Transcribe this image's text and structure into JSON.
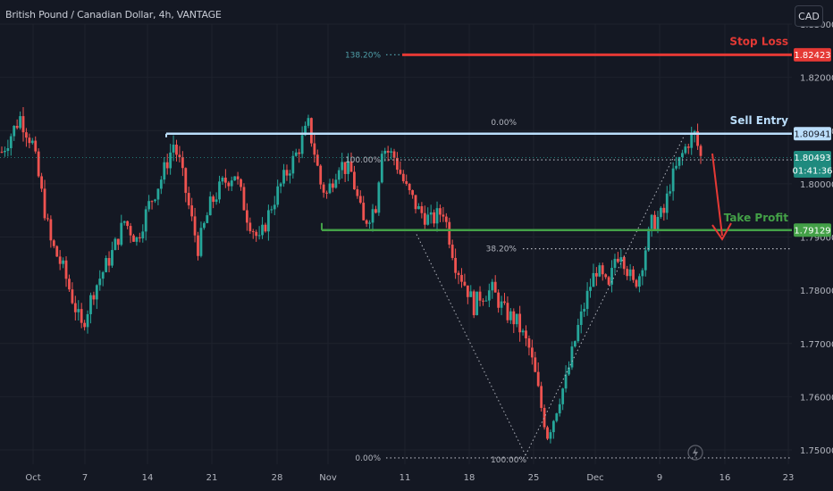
{
  "header": {
    "title": "British Pound / Canadian Dollar, 4h, VANTAGE",
    "currency_button": "CAD"
  },
  "colors": {
    "background": "#141823",
    "up": "#26a69a",
    "down": "#ef5350",
    "stop": "#e53935",
    "entry": "#bbdefb",
    "take_profit": "#43a047",
    "fib": "#b2b5be",
    "fib_top": "#4f9ea8",
    "grid": "#1e222d"
  },
  "chart_data": {
    "type": "candlestick",
    "title": "British Pound / Canadian Dollar, 4h, VANTAGE",
    "y_axis": {
      "ticks": [
        "1.83000",
        "1.82000",
        "1.81000",
        "1.80000",
        "1.79000",
        "1.78000",
        "1.77000",
        "1.76000",
        "1.75000"
      ],
      "range": [
        1.746,
        1.838
      ]
    },
    "x_axis": {
      "ticks": [
        "Oct",
        "7",
        "14",
        "21",
        "28",
        "Nov",
        "11",
        "18",
        "25",
        "Dec",
        "9",
        "16",
        "23"
      ]
    },
    "price_path": [
      [
        0,
        1.806
      ],
      [
        3,
        1.8125
      ],
      [
        5,
        1.8075
      ],
      [
        7,
        1.795
      ],
      [
        8,
        1.789
      ],
      [
        10,
        1.784
      ],
      [
        13,
        1.773
      ],
      [
        15,
        1.78
      ],
      [
        18,
        1.787
      ],
      [
        20,
        1.793
      ],
      [
        22,
        1.7895
      ],
      [
        24,
        1.796
      ],
      [
        26,
        1.801
      ],
      [
        28,
        1.8075
      ],
      [
        29,
        1.804
      ],
      [
        31,
        1.793
      ],
      [
        32,
        1.788
      ],
      [
        34,
        1.796
      ],
      [
        36,
        1.8
      ],
      [
        38,
        1.802
      ],
      [
        40,
        1.794
      ],
      [
        42,
        1.789
      ],
      [
        44,
        1.796
      ],
      [
        46,
        1.801
      ],
      [
        48,
        1.8055
      ],
      [
        50,
        1.811
      ],
      [
        51,
        1.806
      ],
      [
        52,
        1.8
      ],
      [
        53,
        1.798
      ],
      [
        55,
        1.804
      ],
      [
        57,
        1.802
      ],
      [
        59,
        1.7925
      ],
      [
        61,
        1.796
      ],
      [
        62,
        1.807
      ],
      [
        64,
        1.805
      ],
      [
        66,
        1.799
      ],
      [
        68,
        1.795
      ],
      [
        70,
        1.793
      ],
      [
        72,
        1.795
      ],
      [
        74,
        1.785
      ],
      [
        76,
        1.78
      ],
      [
        77,
        1.777
      ],
      [
        78,
        1.779
      ],
      [
        80,
        1.78
      ],
      [
        82,
        1.776
      ],
      [
        84,
        1.774
      ],
      [
        86,
        1.769
      ],
      [
        87,
        1.764
      ],
      [
        88,
        1.758
      ],
      [
        89,
        1.753
      ],
      [
        90,
        1.756
      ],
      [
        91,
        1.76
      ],
      [
        92,
        1.763
      ],
      [
        94,
        1.773
      ],
      [
        96,
        1.781
      ],
      [
        97,
        1.784
      ],
      [
        99,
        1.78
      ],
      [
        100,
        1.786
      ],
      [
        101,
        1.7875
      ],
      [
        102,
        1.784
      ],
      [
        103,
        1.781
      ],
      [
        104,
        1.783
      ],
      [
        105,
        1.788
      ],
      [
        106,
        1.7925
      ],
      [
        108,
        1.7945
      ],
      [
        109,
        1.8
      ],
      [
        111,
        1.8055
      ],
      [
        112,
        1.808
      ],
      [
        113,
        1.8092
      ],
      [
        114,
        1.805
      ]
    ],
    "current_price": {
      "value": "1.80493",
      "countdown": "01:41:36"
    },
    "levels": [
      {
        "name": "Stop Loss",
        "price": 1.82423,
        "label": "1.82423"
      },
      {
        "name": "Sell Entry",
        "price": 1.80941,
        "label": "1.80941"
      },
      {
        "name": "Take Profit",
        "price": 1.79129,
        "label": "1.79129"
      }
    ],
    "fib_labels": {
      "top": "138.20%",
      "entry": "0.00%",
      "mid_left": "100.00%",
      "retrace": "38.20%",
      "bottom_left": "0.00%",
      "bottom_right": "100.00%"
    },
    "annotations": [
      "Stop Loss",
      "Sell Entry",
      "Take Profit"
    ]
  }
}
